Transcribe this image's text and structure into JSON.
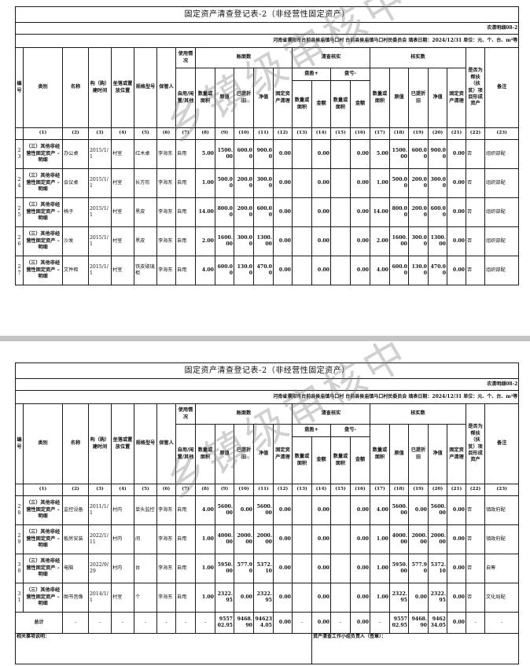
{
  "header": {
    "title": "固定资产清查登记表-2（非经营性固定资产）",
    "form_code": "农清明细08-2",
    "location_line": "河南省濮阳市台前县侯庙镇马口村  台前县侯庙镇马口村民委员会  填表日期：2024/12/31  单位：元、个、台、m²等",
    "cols": {
      "no": "编号",
      "category": "类别",
      "name": "名称",
      "build_time": "构（购）建时间",
      "location": "坐落或置放位置",
      "spec": "规格型号",
      "keeper": "保管人",
      "usage": "使用情况",
      "usage_sub": "自用/闲置/其他",
      "book": "账面数",
      "check": "清查核实",
      "verified": "核实数",
      "surplus": "盘盈+",
      "loss": "盘亏-",
      "qty": "数量或面积",
      "orig": "原值",
      "depr": "已提折旧",
      "net": "净值",
      "clear": "固定资产清理",
      "amount": "金额",
      "poverty": "是否为帮扶（扶贫）项目形成资产",
      "remark": "备注"
    },
    "col_numbers": [
      "(1)",
      "(2)",
      "(3)",
      "(4)",
      "(5)",
      "(6)",
      "(7)",
      "(8)",
      "(9)",
      "(10)",
      "(11)",
      "(12)",
      "(13)",
      "(14)",
      "(15)",
      "(16)",
      "(17)",
      "(18)",
      "(19)",
      "(20)",
      "(21)",
      "(22)",
      "(23)"
    ]
  },
  "watermark": "乡镇级审核中",
  "pages": [
    {
      "rows": [
        [
          "23",
          "（三）其他非经营性固定资产 –明细",
          "办公桌",
          "2015/1/1",
          "村室",
          "红木桌",
          "李海东",
          "自用",
          "5.00",
          "1500.00",
          "600.00",
          "900.00",
          "0.00",
          "",
          "0.00",
          "",
          "0.00",
          "5.00",
          "1500.00",
          "600.00",
          "900.00",
          "0.00",
          "否",
          "组织部配"
        ],
        [
          "24",
          "（三）其他非经营性固定资产 –明细",
          "会议桌",
          "2015/1/1",
          "村室",
          "长方形",
          "李海东",
          "自用",
          "1.00",
          "500.00",
          "200.00",
          "300.00",
          "0.00",
          "",
          "0.00",
          "",
          "0.00",
          "1.00",
          "500.00",
          "200.00",
          "300.00",
          "0.00",
          "否",
          "组织部配"
        ],
        [
          "25",
          "（三）其他非经营性固定资产 –明细",
          "椅子",
          "2015/1/1",
          "村室",
          "黑皮",
          "李海东",
          "自用",
          "14.00",
          "800.00",
          "200.00",
          "600.00",
          "0.00",
          "",
          "0.00",
          "",
          "0.00",
          "14.00",
          "800.00",
          "200.00",
          "600.00",
          "0.00",
          "否",
          "组织部配"
        ],
        [
          "26",
          "（三）其他非经营性固定资产 –明细",
          "沙发",
          "2015/1/1",
          "村室",
          "黑皮",
          "李海东",
          "自用",
          "2.00",
          "1600.00",
          "300.00",
          "1300.00",
          "0.00",
          "",
          "0.00",
          "",
          "0.00",
          "2.00",
          "1600.00",
          "300.00",
          "1300.00",
          "0.00",
          "否",
          "组织部配"
        ],
        [
          "27",
          "（三）其他非经营性固定资产 –明细",
          "文件柜",
          "2015/1/1",
          "村室",
          "铁皮玻璃柜",
          "李海东",
          "自用",
          "4.00",
          "600.00",
          "130.00",
          "470.00",
          "0.00",
          "",
          "0.00",
          "",
          "0.00",
          "4.00",
          "600.00",
          "130.00",
          "470.00",
          "0.00",
          "否",
          "组织部配"
        ]
      ]
    },
    {
      "rows": [
        [
          "28",
          "（三）其他非经营性固定资产 –明细",
          "监控设备",
          "2011/1/1",
          "村内",
          "单头监控",
          "李海东",
          "自用",
          "4.00",
          "5600.00",
          "0.00",
          "5600.00",
          "0.00",
          "",
          "0.00",
          "",
          "0.00",
          "4.00",
          "5600.00",
          "0.00",
          "5600.00",
          "0.00",
          "否",
          "镇政府配"
        ],
        [
          "29",
          "（三）其他非经营性固定资产 –明细",
          "板房安装",
          "2022/1/11",
          "村内",
          "间",
          "李海东",
          "自用",
          "1.00",
          "4000.00",
          "2000.00",
          "2000.00",
          "0.00",
          "",
          "0.00",
          "",
          "0.00",
          "1.00",
          "4000.00",
          "2000.00",
          "2000.00",
          "0.00",
          "否",
          "镇政府配"
        ],
        [
          "30",
          "（三）其他非经营性固定资产 –明细",
          "电脑",
          "2022/9/29",
          "村内",
          "台",
          "李海东",
          "自用",
          "1.00",
          "5950.00",
          "577.90",
          "5372.10",
          "0.00",
          "",
          "0.00",
          "",
          "0.00",
          "1.00",
          "5950.00",
          "577.90",
          "5372.10",
          "0.00",
          "否",
          "自筹"
        ],
        [
          "31",
          "（三）其他非经营性固定资产 –明细",
          "图书音像",
          "2014/1/1",
          "村室",
          "个",
          "李海东",
          "自用",
          "1.00",
          "2322.95",
          "0.00",
          "2322.95",
          "0.00",
          "",
          "0.00",
          "",
          "0.00",
          "1.00",
          "2322.95",
          "0.00",
          "2322.95",
          "0.00",
          "否",
          "文化局配"
        ]
      ],
      "total": {
        "label": "总计",
        "values": [
          "-",
          "-",
          "-",
          "-",
          "-",
          "-",
          "-",
          "955702.95",
          "9468.90",
          "946234.05",
          "0.00",
          "-",
          "0.00",
          "-",
          "0.00",
          "-",
          "955702.95",
          "9468.90",
          "946234.05",
          "0.00",
          "-",
          "-"
        ]
      },
      "footer": {
        "notes_label": "相关事项说明：",
        "signer_label": "资产清查工作小组负责人（签章）："
      }
    }
  ]
}
